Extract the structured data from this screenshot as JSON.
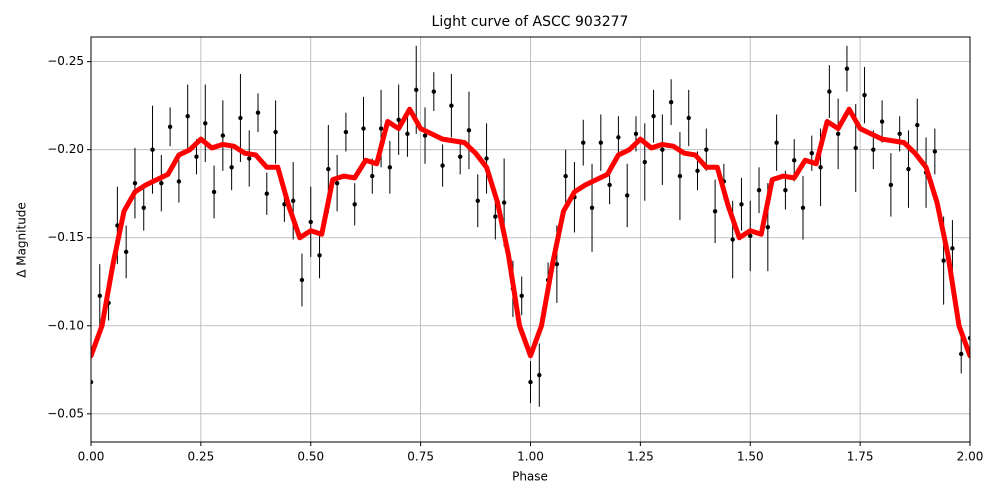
{
  "chart_data": {
    "type": "scatter",
    "title": "Light curve of ASCC 903277",
    "x_label": "Phase",
    "y_label": "Δ Magnitude",
    "xlim": [
      0,
      2
    ],
    "ylim": [
      -0.034,
      -0.264
    ],
    "grid": true,
    "xticks": [
      {
        "value": 0,
        "label": "0.00"
      },
      0.25,
      {
        "value": 0.5,
        "label": "0.50"
      },
      0.75,
      {
        "value": 1,
        "label": "1.00"
      },
      1.25,
      {
        "value": 1.5,
        "label": "1.50"
      },
      1.75,
      {
        "value": 2,
        "label": "2.00"
      }
    ],
    "yticks": [
      {
        "value": -0.25,
        "label": "−0.25"
      },
      {
        "value": -0.2,
        "label": "−0.20"
      },
      {
        "value": -0.15,
        "label": "−0.15"
      },
      {
        "value": -0.1,
        "label": "−0.10"
      },
      {
        "value": -0.05,
        "label": "−0.05"
      }
    ],
    "series": [
      {
        "kind": "errorbar",
        "color": "#000000",
        "x": [
          0,
          0.02,
          0.04,
          0.06,
          0.08,
          0.1,
          0.12,
          0.14,
          0.16,
          0.18,
          0.2,
          0.22,
          0.24,
          0.26,
          0.28,
          0.3,
          0.32,
          0.34,
          0.36,
          0.38,
          0.4,
          0.42,
          0.44,
          0.46,
          0.48,
          0.5,
          0.52,
          0.54,
          0.56,
          0.58,
          0.6,
          0.62,
          0.64,
          0.66,
          0.68,
          0.7,
          0.72,
          0.74,
          0.76,
          0.78,
          0.8,
          0.82,
          0.84,
          0.86,
          0.88,
          0.9,
          0.92,
          0.94,
          0.96,
          0.98,
          1,
          1.02,
          1.04,
          1.06,
          1.08,
          1.1,
          1.12,
          1.14,
          1.16,
          1.18,
          1.2,
          1.22,
          1.24,
          1.26,
          1.28,
          1.3,
          1.32,
          1.34,
          1.36,
          1.38,
          1.4,
          1.42,
          1.44,
          1.46,
          1.48,
          1.5,
          1.52,
          1.54,
          1.56,
          1.58,
          1.6,
          1.62,
          1.64,
          1.66,
          1.68,
          1.7,
          1.72,
          1.74,
          1.76,
          1.78,
          1.8,
          1.82,
          1.84,
          1.86,
          1.88,
          1.9,
          1.92,
          1.94,
          1.96,
          1.98,
          2
        ],
        "values": [
          -0.068,
          -0.117,
          -0.113,
          -0.157,
          -0.142,
          -0.181,
          -0.167,
          -0.2,
          -0.181,
          -0.213,
          -0.182,
          -0.219,
          -0.196,
          -0.215,
          -0.176,
          -0.208,
          -0.19,
          -0.218,
          -0.195,
          -0.221,
          -0.175,
          -0.21,
          -0.169,
          -0.171,
          -0.126,
          -0.159,
          -0.14,
          -0.189,
          -0.181,
          -0.21,
          -0.169,
          -0.212,
          -0.185,
          -0.212,
          -0.19,
          -0.217,
          -0.209,
          -0.234,
          -0.208,
          -0.233,
          -0.191,
          -0.225,
          -0.196,
          -0.211,
          -0.171,
          -0.195,
          -0.162,
          -0.17,
          -0.121,
          -0.117,
          -0.068,
          -0.072,
          -0.126,
          -0.135,
          -0.185,
          -0.173,
          -0.204,
          -0.167,
          -0.204,
          -0.18,
          -0.207,
          -0.174,
          -0.209,
          -0.193,
          -0.219,
          -0.2,
          -0.227,
          -0.185,
          -0.218,
          -0.188,
          -0.2,
          -0.165,
          -0.182,
          -0.149,
          -0.169,
          -0.151,
          -0.177,
          -0.156,
          -0.204,
          -0.177,
          -0.194,
          -0.167,
          -0.198,
          -0.19,
          -0.233,
          -0.209,
          -0.246,
          -0.201,
          -0.231,
          -0.2,
          -0.216,
          -0.18,
          -0.209,
          -0.189,
          -0.214,
          -0.187,
          -0.199,
          -0.137,
          -0.144,
          -0.084,
          -0.093
        ],
        "errors": [
          0.012,
          0.018,
          0.01,
          0.022,
          0.015,
          0.02,
          0.013,
          0.025,
          0.016,
          0.011,
          0.012,
          0.018,
          0.01,
          0.022,
          0.015,
          0.02,
          0.013,
          0.025,
          0.016,
          0.011,
          0.012,
          0.018,
          0.01,
          0.022,
          0.015,
          0.02,
          0.013,
          0.025,
          0.016,
          0.011,
          0.012,
          0.018,
          0.01,
          0.022,
          0.015,
          0.02,
          0.013,
          0.025,
          0.016,
          0.011,
          0.012,
          0.018,
          0.01,
          0.022,
          0.015,
          0.02,
          0.013,
          0.025,
          0.016,
          0.011,
          0.012,
          0.018,
          0.01,
          0.022,
          0.015,
          0.02,
          0.013,
          0.025,
          0.016,
          0.011,
          0.012,
          0.018,
          0.01,
          0.022,
          0.015,
          0.02,
          0.013,
          0.025,
          0.016,
          0.011,
          0.012,
          0.018,
          0.01,
          0.022,
          0.015,
          0.02,
          0.013,
          0.025,
          0.016,
          0.011,
          0.012,
          0.018,
          0.01,
          0.022,
          0.015,
          0.02,
          0.013,
          0.025,
          0.016,
          0.011,
          0.012,
          0.018,
          0.01,
          0.022,
          0.015,
          0.02,
          0.013,
          0.025,
          0.016,
          0.011,
          0.012
        ]
      },
      {
        "kind": "line",
        "color": "#ff0000",
        "x": [
          0,
          0.025,
          0.05,
          0.075,
          0.1,
          0.125,
          0.15,
          0.175,
          0.2,
          0.225,
          0.25,
          0.275,
          0.3,
          0.325,
          0.35,
          0.375,
          0.4,
          0.425,
          0.45,
          0.475,
          0.5,
          0.525,
          0.55,
          0.575,
          0.6,
          0.625,
          0.65,
          0.675,
          0.7,
          0.725,
          0.75,
          0.775,
          0.8,
          0.825,
          0.85,
          0.875,
          0.9,
          0.925,
          0.95,
          0.975,
          1,
          1.025,
          1.05,
          1.075,
          1.1,
          1.125,
          1.15,
          1.175,
          1.2,
          1.225,
          1.25,
          1.275,
          1.3,
          1.325,
          1.35,
          1.375,
          1.4,
          1.425,
          1.45,
          1.475,
          1.5,
          1.525,
          1.55,
          1.575,
          1.6,
          1.625,
          1.65,
          1.675,
          1.7,
          1.725,
          1.75,
          1.775,
          1.8,
          1.825,
          1.85,
          1.875,
          1.9,
          1.925,
          1.95,
          1.975,
          2
        ],
        "values": [
          -0.083,
          -0.1,
          -0.135,
          -0.165,
          -0.176,
          -0.18,
          -0.183,
          -0.186,
          -0.197,
          -0.2,
          -0.206,
          -0.201,
          -0.203,
          -0.202,
          -0.198,
          -0.197,
          -0.19,
          -0.19,
          -0.168,
          -0.15,
          -0.154,
          -0.152,
          -0.183,
          -0.185,
          -0.184,
          -0.194,
          -0.192,
          -0.216,
          -0.212,
          -0.223,
          -0.212,
          -0.209,
          -0.206,
          -0.205,
          -0.204,
          -0.198,
          -0.19,
          -0.17,
          -0.14,
          -0.1,
          -0.083,
          -0.1,
          -0.135,
          -0.165,
          -0.176,
          -0.18,
          -0.183,
          -0.186,
          -0.197,
          -0.2,
          -0.206,
          -0.201,
          -0.203,
          -0.202,
          -0.198,
          -0.197,
          -0.19,
          -0.19,
          -0.168,
          -0.15,
          -0.154,
          -0.152,
          -0.183,
          -0.185,
          -0.184,
          -0.194,
          -0.192,
          -0.216,
          -0.212,
          -0.223,
          -0.212,
          -0.209,
          -0.206,
          -0.205,
          -0.204,
          -0.198,
          -0.19,
          -0.17,
          -0.14,
          -0.1,
          -0.083
        ]
      }
    ]
  }
}
